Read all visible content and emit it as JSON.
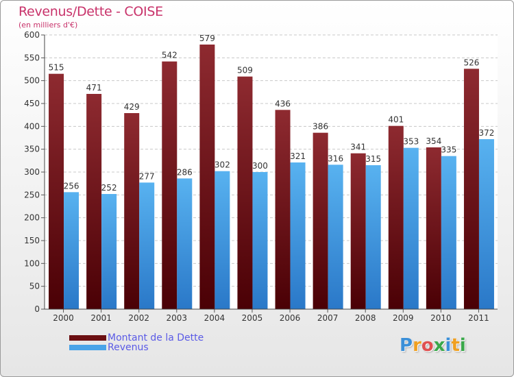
{
  "header": {
    "title": "Revenus/Dette - COISE",
    "subtitle": "(en milliers d'€)"
  },
  "chart_data": {
    "type": "bar",
    "categories": [
      "2000",
      "2001",
      "2002",
      "2003",
      "2004",
      "2005",
      "2006",
      "2007",
      "2008",
      "2009",
      "2010",
      "2011"
    ],
    "series": [
      {
        "name": "Montant de la Dette",
        "values": [
          515,
          471,
          429,
          542,
          579,
          509,
          436,
          386,
          341,
          401,
          354,
          526
        ],
        "color": "#7a1c1f"
      },
      {
        "name": "Revenus",
        "values": [
          256,
          252,
          277,
          286,
          302,
          300,
          321,
          316,
          315,
          353,
          335,
          372
        ],
        "color": "#4aa3e8"
      }
    ],
    "ylim": [
      0,
      600
    ],
    "yticks": [
      0,
      50,
      100,
      150,
      200,
      250,
      300,
      350,
      400,
      450,
      500,
      550,
      600
    ],
    "grid": true,
    "legend": "bottom-left"
  },
  "legend": {
    "items": [
      {
        "label": "Montant de la Dette",
        "color": "#6b0f12"
      },
      {
        "label": "Revenus",
        "color": "#4aa3e8"
      }
    ]
  },
  "logo": {
    "letters": [
      {
        "char": "P",
        "color": "#3a8fd8"
      },
      {
        "char": "r",
        "color": "#f0a020"
      },
      {
        "char": "o",
        "color": "#e05050"
      },
      {
        "char": "x",
        "color": "#3aa84a"
      },
      {
        "char": "i",
        "color": "#3a8fd8"
      },
      {
        "char": "t",
        "color": "#f0a020"
      },
      {
        "char": "i",
        "color": "#3aa84a"
      }
    ]
  }
}
